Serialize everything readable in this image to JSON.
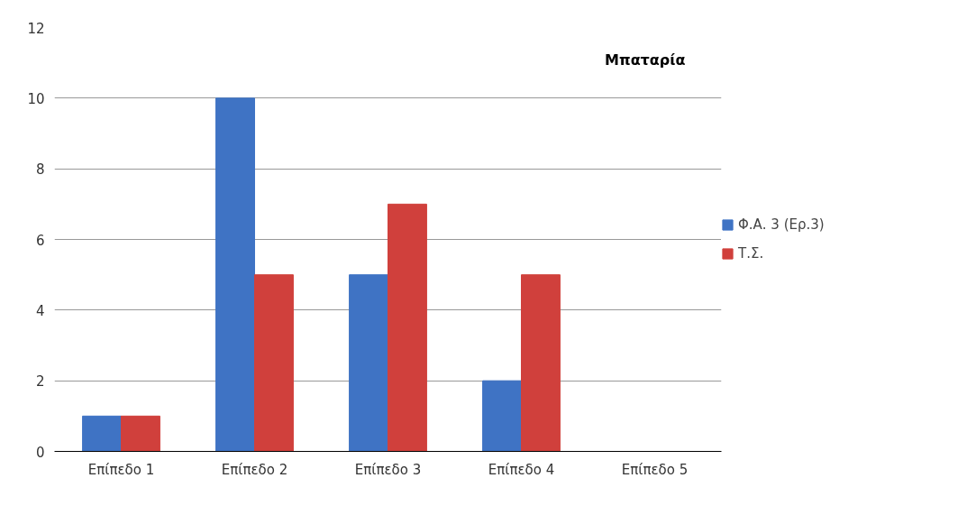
{
  "chart_data": {
    "type": "bar",
    "title": "Μπαταρία",
    "categories": [
      "Επίπεδο 1",
      "Επίπεδο 2",
      "Επίπεδο 3",
      "Επίπεδο 4",
      "Επίπεδο 5"
    ],
    "series": [
      {
        "name": "Φ.Α. 3 (Ερ.3)",
        "color": "#3f73c4",
        "values": [
          1,
          10,
          5,
          2,
          0
        ]
      },
      {
        "name": "Τ.Σ.",
        "color": "#d0403c",
        "values": [
          1,
          5,
          7,
          5,
          0
        ]
      }
    ],
    "ylim": [
      0,
      12
    ],
    "yticks": [
      0,
      2,
      4,
      6,
      8,
      10,
      12
    ],
    "grid": "y",
    "legend": "right"
  }
}
